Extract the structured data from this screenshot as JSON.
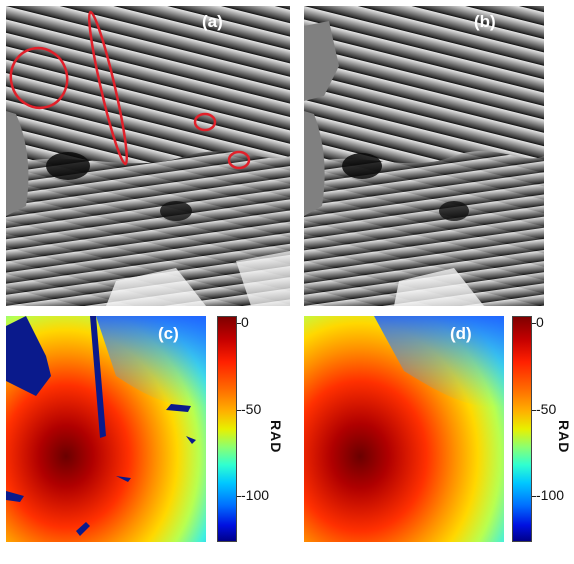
{
  "panels": {
    "a": {
      "label": "(a)"
    },
    "b": {
      "label": "(b)"
    },
    "c": {
      "label": "(c)"
    },
    "d": {
      "label": "(d)"
    }
  },
  "colorbars": [
    {
      "ticks": [
        "0",
        "-50",
        "-100"
      ],
      "unit": "RAD"
    },
    {
      "ticks": [
        "0",
        "-50",
        "-100"
      ],
      "unit": "RAD"
    }
  ],
  "colors": {
    "highlight": "#e0202a",
    "mask_blue": "#0a1a8c",
    "phase_gray": "#808080"
  }
}
